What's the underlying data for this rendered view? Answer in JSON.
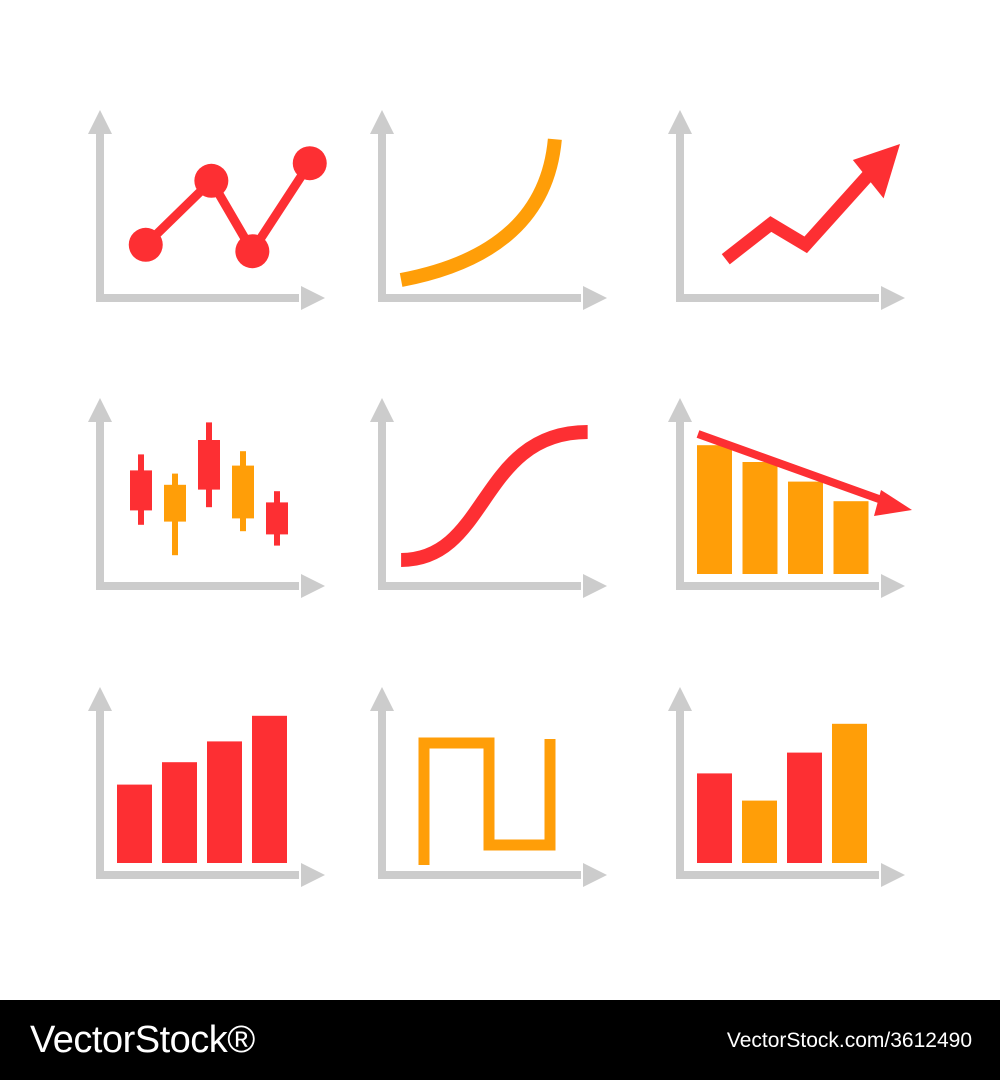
{
  "colors": {
    "background": "#ffffff",
    "axis": "#cccccc",
    "red": "#fd2f33",
    "orange": "#ff9e08",
    "footer_bg": "#000000",
    "footer_text": "#ffffff"
  },
  "icons": [
    {
      "name": "line-chart-with-markers-icon",
      "kind": "line-markers",
      "color": "red",
      "points": [
        [
          0.15,
          0.27
        ],
        [
          0.47,
          0.67
        ],
        [
          0.67,
          0.23
        ],
        [
          0.95,
          0.78
        ]
      ]
    },
    {
      "name": "exponential-curve-icon",
      "kind": "exp-curve",
      "color": "orange"
    },
    {
      "name": "trending-up-arrow-icon",
      "kind": "zigzag-arrow",
      "color": "red"
    },
    {
      "name": "candlestick-chart-icon",
      "kind": "candles",
      "candles": [
        {
          "color": "red",
          "low": 0.32,
          "open": 0.41,
          "close": 0.66,
          "high": 0.76
        },
        {
          "color": "orange",
          "low": 0.13,
          "open": 0.34,
          "close": 0.57,
          "high": 0.64
        },
        {
          "color": "red",
          "low": 0.43,
          "open": 0.54,
          "close": 0.85,
          "high": 0.96
        },
        {
          "color": "orange",
          "low": 0.28,
          "open": 0.36,
          "close": 0.69,
          "high": 0.78
        },
        {
          "color": "red",
          "low": 0.19,
          "open": 0.26,
          "close": 0.46,
          "high": 0.53
        }
      ]
    },
    {
      "name": "s-curve-icon",
      "kind": "s-curve",
      "color": "red"
    },
    {
      "name": "declining-bar-chart-icon",
      "kind": "declining-bars",
      "bar_color": "orange",
      "arrow_color": "red",
      "values": [
        0.92,
        0.8,
        0.66,
        0.52
      ]
    },
    {
      "name": "rising-bar-chart-icon",
      "kind": "bars",
      "bars": [
        {
          "color": "red",
          "value": 0.49
        },
        {
          "color": "red",
          "value": 0.63
        },
        {
          "color": "red",
          "value": 0.76
        },
        {
          "color": "red",
          "value": 0.92
        }
      ]
    },
    {
      "name": "square-wave-icon",
      "kind": "square-wave",
      "color": "orange"
    },
    {
      "name": "mixed-bar-chart-icon",
      "kind": "bars",
      "bars": [
        {
          "color": "red",
          "value": 0.56
        },
        {
          "color": "orange",
          "value": 0.39
        },
        {
          "color": "red",
          "value": 0.69
        },
        {
          "color": "orange",
          "value": 0.87
        }
      ]
    }
  ],
  "footer": {
    "brand": "VectorStock®",
    "stock_id": "VectorStock.com/3612490"
  }
}
